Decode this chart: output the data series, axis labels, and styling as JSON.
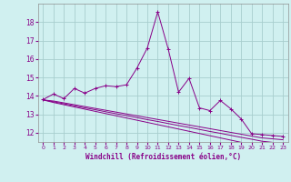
{
  "x": [
    0,
    1,
    2,
    3,
    4,
    5,
    6,
    7,
    8,
    9,
    10,
    11,
    12,
    13,
    14,
    15,
    16,
    17,
    18,
    19,
    20,
    21,
    22,
    23
  ],
  "series1": [
    13.8,
    14.1,
    13.85,
    14.4,
    14.15,
    14.4,
    14.55,
    14.5,
    14.6,
    15.5,
    16.6,
    18.55,
    16.55,
    14.2,
    14.95,
    13.35,
    13.2,
    13.75,
    13.3,
    12.75,
    11.95,
    11.9,
    11.85,
    11.8
  ],
  "series2": [
    13.78,
    13.72,
    13.62,
    13.52,
    13.42,
    13.32,
    13.22,
    13.12,
    13.02,
    12.92,
    12.82,
    12.72,
    12.62,
    12.52,
    12.42,
    12.32,
    12.22,
    12.12,
    12.02,
    11.92,
    11.82,
    11.72,
    11.67,
    11.62
  ],
  "series3": [
    13.78,
    13.68,
    13.57,
    13.46,
    13.35,
    13.25,
    13.14,
    13.03,
    12.93,
    12.82,
    12.71,
    12.61,
    12.5,
    12.39,
    12.29,
    12.18,
    12.07,
    11.97,
    11.86,
    11.75,
    11.65,
    11.54,
    11.48,
    11.43
  ],
  "series4": [
    13.78,
    13.64,
    13.52,
    13.4,
    13.28,
    13.16,
    13.04,
    12.92,
    12.8,
    12.68,
    12.56,
    12.44,
    12.32,
    12.2,
    12.08,
    11.96,
    11.84,
    11.72,
    11.6,
    11.48,
    11.36,
    11.24,
    11.18,
    11.12
  ],
  "color": "#880088",
  "bg_color": "#d0f0f0",
  "grid_color": "#a8cece",
  "xlabel": "Windchill (Refroidissement éolien,°C)",
  "xlim": [
    -0.5,
    23.5
  ],
  "ylim": [
    11.5,
    19.0
  ],
  "yticks": [
    12,
    13,
    14,
    15,
    16,
    17,
    18
  ],
  "xticks": [
    0,
    1,
    2,
    3,
    4,
    5,
    6,
    7,
    8,
    9,
    10,
    11,
    12,
    13,
    14,
    15,
    16,
    17,
    18,
    19,
    20,
    21,
    22,
    23
  ]
}
